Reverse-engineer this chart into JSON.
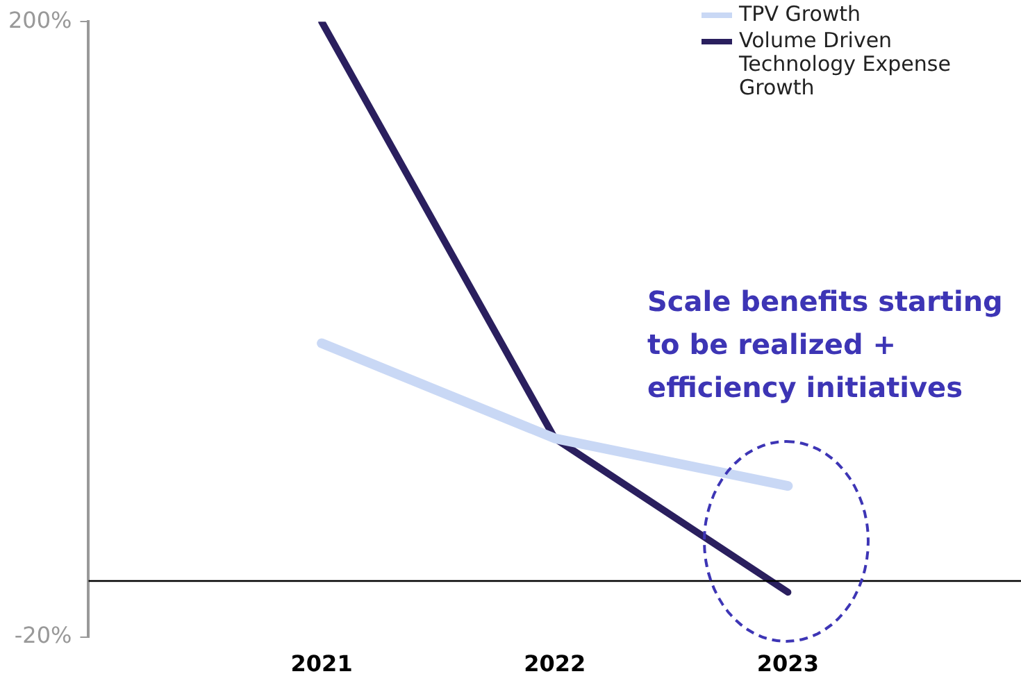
{
  "chart_data": {
    "type": "line",
    "categories": [
      "2021",
      "2022",
      "2023"
    ],
    "series": [
      {
        "name": "TPV Growth",
        "color": "#c9d8f5",
        "values": [
          85,
          51,
          34
        ]
      },
      {
        "name": "Volume Driven Technology Expense Growth",
        "color": "#2a1f5e",
        "values": [
          200,
          51,
          -4
        ]
      }
    ],
    "ylim": [
      -20,
      200
    ],
    "yticks": [
      {
        "value": -20,
        "label": "-20%"
      },
      {
        "value": 200,
        "label": "200%"
      }
    ],
    "ref_lines": [
      {
        "axis": "y",
        "value": 0,
        "color": "#000000"
      }
    ],
    "legend": "top right",
    "annotations": [
      "Scale benefits starting to be realized + efficiency initiatives"
    ]
  }
}
